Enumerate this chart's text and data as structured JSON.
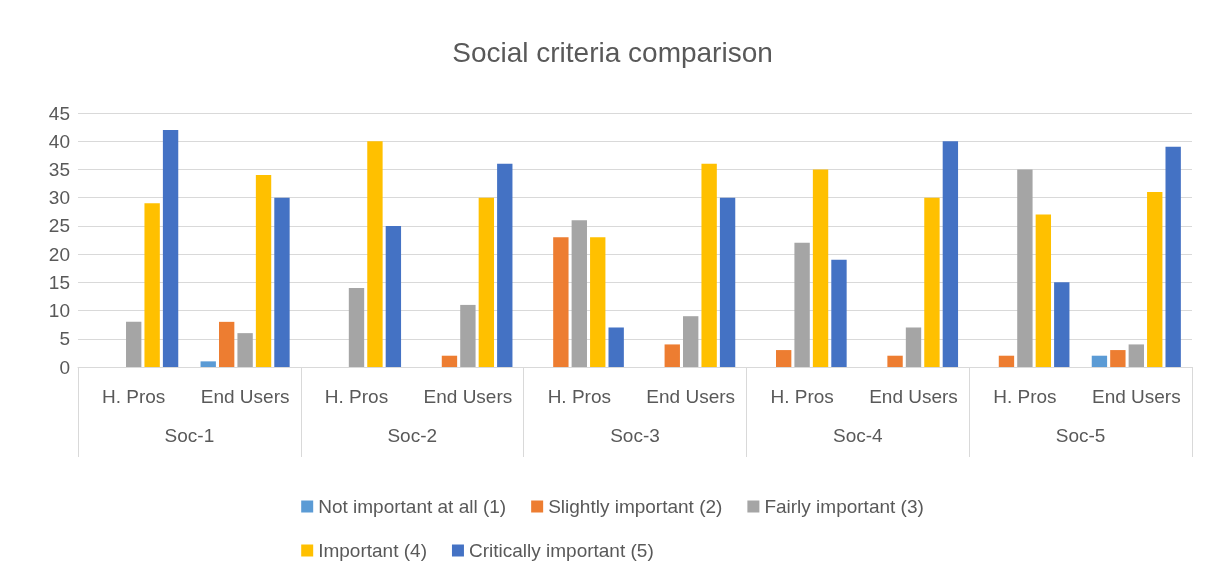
{
  "chart_data": {
    "type": "bar",
    "title": "Social criteria comparison",
    "categories": [
      "H. Pros",
      "End Users",
      "H. Pros",
      "End Users",
      "H. Pros",
      "End Users",
      "H. Pros",
      "End Users",
      "H. Pros",
      "End Users"
    ],
    "annotations": [
      "Soc-1",
      "Soc-2",
      "Soc-3",
      "Soc-4",
      "Soc-5"
    ],
    "series": [
      {
        "name": "Not important at all (1)",
        "color": "#5b9bd5",
        "values": [
          0,
          1,
          0,
          0,
          0,
          0,
          0,
          0,
          0,
          2
        ]
      },
      {
        "name": "Slightly important (2)",
        "color": "#ed7d31",
        "values": [
          0,
          8,
          0,
          2,
          23,
          4,
          3,
          2,
          2,
          3
        ]
      },
      {
        "name": "Fairly important (3)",
        "color": "#a5a5a5",
        "values": [
          8,
          6,
          14,
          11,
          26,
          9,
          22,
          7,
          35,
          4
        ]
      },
      {
        "name": "Important (4)",
        "color": "#ffc000",
        "values": [
          29,
          34,
          40,
          30,
          23,
          36,
          35,
          30,
          27,
          31
        ]
      },
      {
        "name": "Critically important (5)",
        "color": "#4472c4",
        "values": [
          42,
          30,
          25,
          36,
          7,
          30,
          19,
          40,
          15,
          39
        ]
      }
    ],
    "ylim": [
      0,
      45
    ],
    "yticks": [
      0,
      5,
      10,
      15,
      20,
      25,
      30,
      35,
      40,
      45
    ],
    "grid": "y",
    "legend": "bottom"
  }
}
